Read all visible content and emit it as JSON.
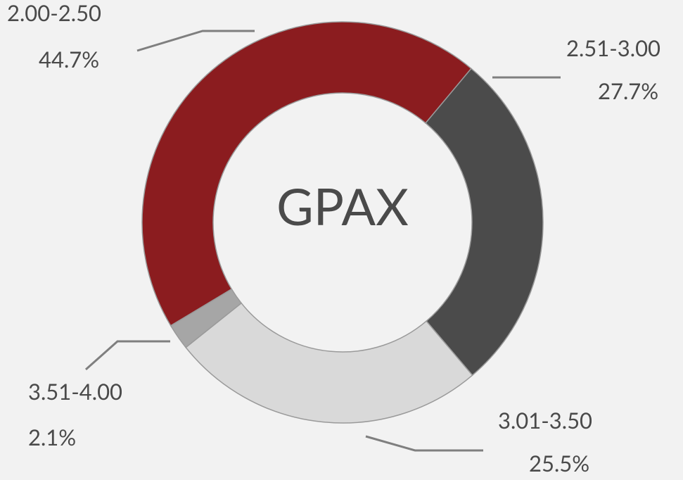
{
  "chart_data": {
    "type": "donut",
    "title": "GPAX",
    "categories": [
      "2.00-2.50",
      "2.51-3.00",
      "3.01-3.50",
      "3.51-4.00"
    ],
    "values": [
      44.7,
      27.7,
      25.5,
      2.1
    ],
    "value_labels": [
      "44.7%",
      "27.7%",
      "25.5%",
      "2.1%"
    ],
    "colors": [
      "#8b1c1f",
      "#4b4b4b",
      "#d9d9d9",
      "#a6a6a6"
    ]
  }
}
